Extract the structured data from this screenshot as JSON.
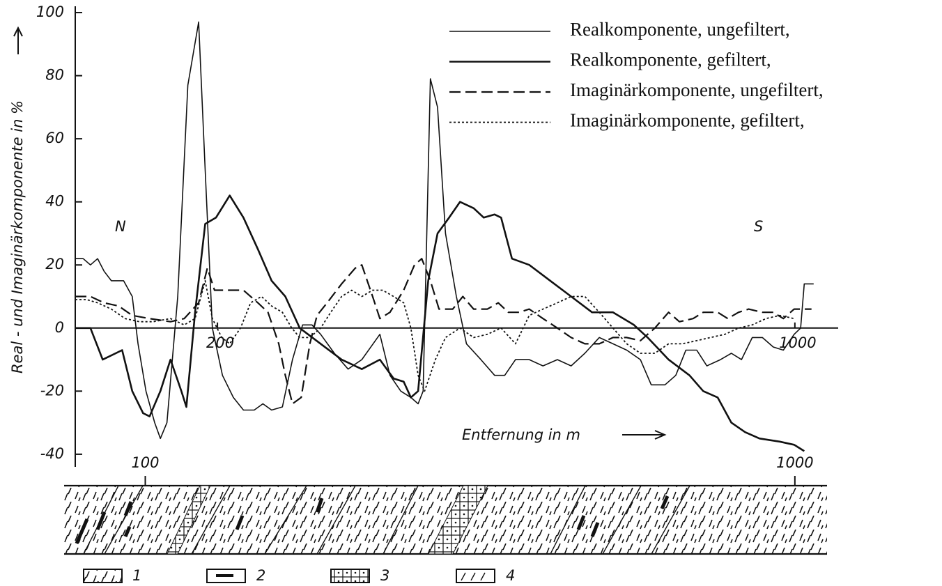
{
  "chart_data": {
    "type": "line",
    "y_label": "Real - und Imaginärkomponente in %",
    "x_label": "Entfernung in m",
    "annotations": [
      "N",
      "S"
    ],
    "xlim": [
      3,
      1060
    ],
    "ylim": [
      -44,
      102
    ],
    "yticks": [
      -40,
      -20,
      0,
      20,
      40,
      60,
      80,
      100
    ],
    "zero_line_ticks": [
      200,
      1000
    ],
    "xticks": [
      100,
      1000
    ],
    "legend": "upper right",
    "section_legend": [
      "1",
      "2",
      "3",
      "4"
    ],
    "series": [
      {
        "name": "Realkomponente, ungefiltert,",
        "color": "#111111",
        "dash": "solid",
        "width": 1.6,
        "x": [
          3,
          14,
          24,
          34,
          43,
          53,
          70,
          82,
          90,
          101,
          113,
          121,
          130,
          145,
          159,
          174,
          183,
          193,
          207,
          222,
          236,
          251,
          263,
          275,
          290,
          304,
          318,
          331,
          343,
          362,
          381,
          400,
          425,
          439,
          454,
          468,
          478,
          485,
          495,
          505,
          516,
          531,
          545,
          565,
          584,
          598,
          613,
          632,
          651,
          671,
          690,
          709,
          729,
          748,
          767,
          786,
          801,
          820,
          835,
          849,
          864,
          878,
          897,
          912,
          926,
          941,
          955,
          970,
          984,
          999,
          1008,
          1013,
          1026
        ],
        "values": [
          22,
          22,
          20,
          22,
          18,
          15,
          15,
          10,
          -5,
          -20,
          -30,
          -35,
          -30,
          10,
          77,
          97,
          50,
          0,
          -15,
          -22,
          -26,
          -26,
          -24,
          -26,
          -25,
          -10,
          1,
          1,
          -2,
          -8,
          -13,
          -10,
          -2,
          -15,
          -20,
          -22,
          -24,
          -20,
          79,
          70,
          30,
          10,
          -5,
          -10,
          -15,
          -15,
          -10,
          -10,
          -12,
          -10,
          -12,
          -8,
          -3,
          -5,
          -7,
          -10,
          -18,
          -18,
          -15,
          -7,
          -7,
          -12,
          -10,
          -8,
          -10,
          -3,
          -3,
          -6,
          -7,
          -2,
          0,
          14,
          14
        ]
      },
      {
        "name": "Realkomponente, gefiltert,",
        "color": "#111111",
        "dash": "solid",
        "width": 2.6,
        "x": [
          3,
          24,
          41,
          68,
          82,
          97,
          106,
          121,
          135,
          150,
          157,
          169,
          183,
          198,
          217,
          236,
          256,
          275,
          294,
          314,
          343,
          372,
          400,
          425,
          444,
          458,
          468,
          478,
          492,
          505,
          521,
          536,
          555,
          569,
          584,
          593,
          608,
          632,
          661,
          690,
          719,
          748,
          777,
          796,
          825,
          854,
          873,
          893,
          912,
          931,
          951,
          979,
          999,
          1013
        ],
        "values": [
          0,
          0,
          -10,
          -7,
          -20,
          -27,
          -28,
          -20,
          -10,
          -20,
          -25,
          5,
          33,
          35,
          42,
          35,
          25,
          15,
          10,
          0,
          -5,
          -10,
          -13,
          -10,
          -16,
          -17,
          -22,
          -20,
          15,
          30,
          35,
          40,
          38,
          35,
          36,
          35,
          22,
          20,
          15,
          10,
          5,
          5,
          1,
          -3,
          -10,
          -15,
          -20,
          -22,
          -30,
          -33,
          -35,
          -36,
          -37,
          -39
        ]
      },
      {
        "name": "Imaginärkomponente, ungefiltert,",
        "color": "#111111",
        "dash": "dashed",
        "width": 2.2,
        "x": [
          3,
          24,
          43,
          63,
          82,
          106,
          135,
          154,
          174,
          186,
          196,
          217,
          236,
          256,
          270,
          285,
          294,
          304,
          316,
          328,
          338,
          352,
          372,
          391,
          400,
          415,
          425,
          439,
          458,
          473,
          483,
          495,
          507,
          526,
          540,
          555,
          574,
          589,
          603,
          618,
          632,
          651,
          671,
          690,
          709,
          729,
          748,
          767,
          786,
          806,
          825,
          840,
          859,
          873,
          893,
          907,
          922,
          936,
          955,
          970,
          984,
          999,
          1023
        ],
        "values": [
          10,
          10,
          8,
          7,
          4,
          3,
          2,
          3,
          8,
          19,
          12,
          12,
          12,
          8,
          5,
          -5,
          -15,
          -24,
          -22,
          -5,
          4,
          8,
          14,
          19,
          20,
          10,
          3,
          5,
          12,
          20,
          22,
          15,
          6,
          6,
          10,
          6,
          6,
          8,
          5,
          5,
          6,
          3,
          0,
          -3,
          -5,
          -5,
          -3,
          -3,
          -4,
          0,
          5,
          2,
          3,
          5,
          5,
          3,
          5,
          6,
          5,
          5,
          3,
          6,
          6
        ]
      },
      {
        "name": "Imaginärkomponente, gefiltert,",
        "color": "#111111",
        "dash": "dotted",
        "width": 1.8,
        "x": [
          3,
          19,
          34,
          53,
          72,
          92,
          111,
          135,
          154,
          169,
          183,
          193,
          206,
          217,
          232,
          246,
          261,
          275,
          290,
          303,
          314,
          328,
          343,
          357,
          372,
          386,
          400,
          415,
          429,
          444,
          458,
          468,
          478,
          487,
          502,
          516,
          536,
          555,
          574,
          593,
          613,
          632,
          651,
          671,
          690,
          709,
          729,
          748,
          767,
          786,
          806,
          825,
          844,
          864,
          883,
          903,
          922,
          941,
          960,
          979,
          999
        ],
        "values": [
          9,
          9,
          8,
          6,
          3,
          2,
          2,
          3,
          1,
          3,
          15,
          3,
          -3,
          -5,
          0,
          8,
          10,
          7,
          5,
          0,
          -3,
          -3,
          0,
          5,
          10,
          12,
          10,
          12,
          12,
          10,
          8,
          0,
          -15,
          -20,
          -10,
          -3,
          0,
          -3,
          -2,
          0,
          -5,
          4,
          6,
          8,
          10,
          10,
          5,
          0,
          -5,
          -8,
          -8,
          -5,
          -5,
          -4,
          -3,
          -2,
          0,
          1,
          3,
          4,
          3
        ]
      }
    ]
  }
}
